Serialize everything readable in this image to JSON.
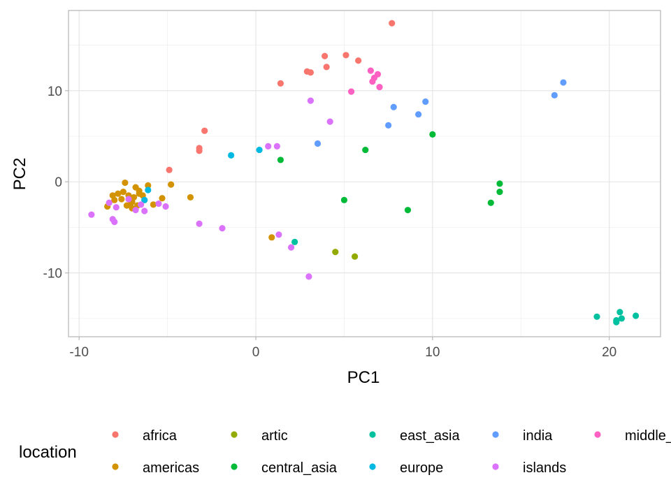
{
  "chart_data": {
    "type": "scatter",
    "title": "",
    "xlabel": "PC1",
    "ylabel": "PC2",
    "xlim": [
      -10.6,
      22.9
    ],
    "ylim": [
      -17.0,
      18.8
    ],
    "x_ticks": [
      -10,
      0,
      10,
      20
    ],
    "y_ticks": [
      -10,
      0,
      10
    ],
    "x_tick_labels": [
      "-10",
      "0",
      "10",
      "20"
    ],
    "y_tick_labels": [
      "-10",
      "0",
      "10"
    ],
    "grid": true,
    "legend": {
      "title": "location",
      "placement": "bottom",
      "entries": [
        "africa",
        "americas",
        "artic",
        "central_asia",
        "east_asia",
        "europe",
        "india",
        "islands",
        "middle_"
      ]
    },
    "series": [
      {
        "name": "africa",
        "color": "#F8766D",
        "points": [
          [
            7.7,
            17.4
          ],
          [
            3.9,
            13.8
          ],
          [
            5.1,
            13.9
          ],
          [
            5.8,
            13.3
          ],
          [
            4.0,
            12.6
          ],
          [
            2.9,
            12.1
          ],
          [
            3.1,
            12.0
          ],
          [
            1.4,
            10.8
          ],
          [
            -2.9,
            5.6
          ],
          [
            -3.2,
            3.7
          ],
          [
            -3.2,
            3.4
          ],
          [
            -4.9,
            1.3
          ]
        ]
      },
      {
        "name": "americas",
        "color": "#D39200",
        "points": [
          [
            -7.4,
            -0.1
          ],
          [
            -7.5,
            -1.1
          ],
          [
            -7.6,
            -1.9
          ],
          [
            -7.3,
            -2.6
          ],
          [
            -7.0,
            -2.9
          ],
          [
            -6.8,
            -0.6
          ],
          [
            -6.6,
            -1.0
          ],
          [
            -6.4,
            -1.5
          ],
          [
            -6.1,
            -0.4
          ],
          [
            -6.9,
            -1.7
          ],
          [
            -7.2,
            -1.5
          ],
          [
            -7.8,
            -1.3
          ],
          [
            -8.1,
            -1.5
          ],
          [
            -8.0,
            -2.0
          ],
          [
            -8.4,
            -2.7
          ],
          [
            -7.0,
            -2.2
          ],
          [
            -6.7,
            -2.6
          ],
          [
            -6.3,
            -2.0
          ],
          [
            -5.8,
            -2.5
          ],
          [
            -5.3,
            -1.8
          ],
          [
            -4.8,
            -0.3
          ],
          [
            -3.7,
            -1.7
          ],
          [
            0.9,
            -6.1
          ],
          [
            -6.6,
            -1.3
          ],
          [
            -7.1,
            -2.5
          ]
        ]
      },
      {
        "name": "artic",
        "color": "#93AA00",
        "points": [
          [
            4.5,
            -7.7
          ],
          [
            5.6,
            -8.2
          ]
        ]
      },
      {
        "name": "central_asia",
        "color": "#00BA38",
        "points": [
          [
            10.0,
            5.2
          ],
          [
            6.2,
            3.5
          ],
          [
            1.4,
            2.4
          ],
          [
            13.8,
            -0.2
          ],
          [
            13.8,
            -1.1
          ],
          [
            13.3,
            -2.3
          ],
          [
            5.0,
            -2.0
          ],
          [
            8.6,
            -3.1
          ]
        ]
      },
      {
        "name": "east_asia",
        "color": "#00C19F",
        "points": [
          [
            2.2,
            -6.6
          ],
          [
            19.3,
            -14.8
          ],
          [
            20.4,
            -15.2
          ],
          [
            20.6,
            -14.3
          ],
          [
            20.7,
            -15.0
          ],
          [
            21.5,
            -14.7
          ],
          [
            20.4,
            -15.4
          ]
        ]
      },
      {
        "name": "europe",
        "color": "#00B9E3",
        "points": [
          [
            -1.4,
            2.9
          ],
          [
            0.2,
            3.5
          ],
          [
            -6.1,
            -0.9
          ],
          [
            -6.3,
            -2.0
          ]
        ]
      },
      {
        "name": "india",
        "color": "#619CFF",
        "points": [
          [
            17.4,
            10.9
          ],
          [
            16.9,
            9.5
          ],
          [
            9.6,
            8.8
          ],
          [
            7.8,
            8.2
          ],
          [
            9.2,
            7.4
          ],
          [
            7.5,
            6.2
          ],
          [
            3.5,
            4.2
          ]
        ]
      },
      {
        "name": "islands",
        "color": "#DB72FB",
        "points": [
          [
            0.7,
            3.9
          ],
          [
            1.2,
            3.9
          ],
          [
            4.2,
            6.6
          ],
          [
            3.1,
            8.9
          ],
          [
            -3.2,
            -4.6
          ],
          [
            -1.9,
            -5.1
          ],
          [
            1.3,
            -5.8
          ],
          [
            2.0,
            -7.2
          ],
          [
            3.0,
            -10.4
          ],
          [
            -9.3,
            -3.6
          ],
          [
            -8.1,
            -4.1
          ],
          [
            -8.0,
            -4.4
          ],
          [
            -8.3,
            -2.3
          ],
          [
            -7.9,
            -2.8
          ],
          [
            -6.8,
            -3.1
          ],
          [
            -6.3,
            -3.2
          ],
          [
            -5.1,
            -2.7
          ],
          [
            -5.5,
            -2.4
          ],
          [
            -7.2,
            -1.9
          ],
          [
            -6.5,
            -2.5
          ]
        ]
      },
      {
        "name": "middle_",
        "color": "#FF61C3",
        "points": [
          [
            6.5,
            12.2
          ],
          [
            6.9,
            11.8
          ],
          [
            6.7,
            11.4
          ],
          [
            6.6,
            11.0
          ],
          [
            7.0,
            10.4
          ],
          [
            5.4,
            9.9
          ]
        ]
      }
    ]
  }
}
